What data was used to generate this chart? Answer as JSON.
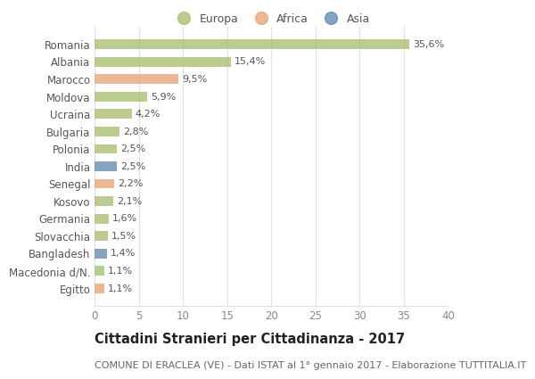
{
  "categories": [
    "Romania",
    "Albania",
    "Marocco",
    "Moldova",
    "Ucraina",
    "Bulgaria",
    "Polonia",
    "India",
    "Senegal",
    "Kosovo",
    "Germania",
    "Slovacchia",
    "Bangladesh",
    "Macedonia d/N.",
    "Egitto"
  ],
  "values": [
    35.6,
    15.4,
    9.5,
    5.9,
    4.2,
    2.8,
    2.5,
    2.5,
    2.2,
    2.1,
    1.6,
    1.5,
    1.4,
    1.1,
    1.1
  ],
  "labels": [
    "35,6%",
    "15,4%",
    "9,5%",
    "5,9%",
    "4,2%",
    "2,8%",
    "2,5%",
    "2,5%",
    "2,2%",
    "2,1%",
    "1,6%",
    "1,5%",
    "1,4%",
    "1,1%",
    "1,1%"
  ],
  "colors": [
    "#adc178",
    "#adc178",
    "#e8a87c",
    "#adc178",
    "#adc178",
    "#adc178",
    "#adc178",
    "#6b8fb5",
    "#e8a87c",
    "#adc178",
    "#adc178",
    "#adc178",
    "#6b8fb5",
    "#adc178",
    "#e8a87c"
  ],
  "legend_labels": [
    "Europa",
    "Africa",
    "Asia"
  ],
  "legend_colors": [
    "#adc178",
    "#e8a87c",
    "#6b8fb5"
  ],
  "title": "Cittadini Stranieri per Cittadinanza - 2017",
  "subtitle": "COMUNE DI ERACLEA (VE) - Dati ISTAT al 1° gennaio 2017 - Elaborazione TUTTITALIA.IT",
  "xlim": [
    0,
    40
  ],
  "xticks": [
    0,
    5,
    10,
    15,
    20,
    25,
    30,
    35,
    40
  ],
  "background_color": "#ffffff",
  "grid_color": "#e0e0e0",
  "bar_height": 0.55,
  "bar_alpha": 0.82,
  "title_fontsize": 10.5,
  "subtitle_fontsize": 8,
  "tick_fontsize": 8.5,
  "label_fontsize": 8,
  "legend_fontsize": 9
}
